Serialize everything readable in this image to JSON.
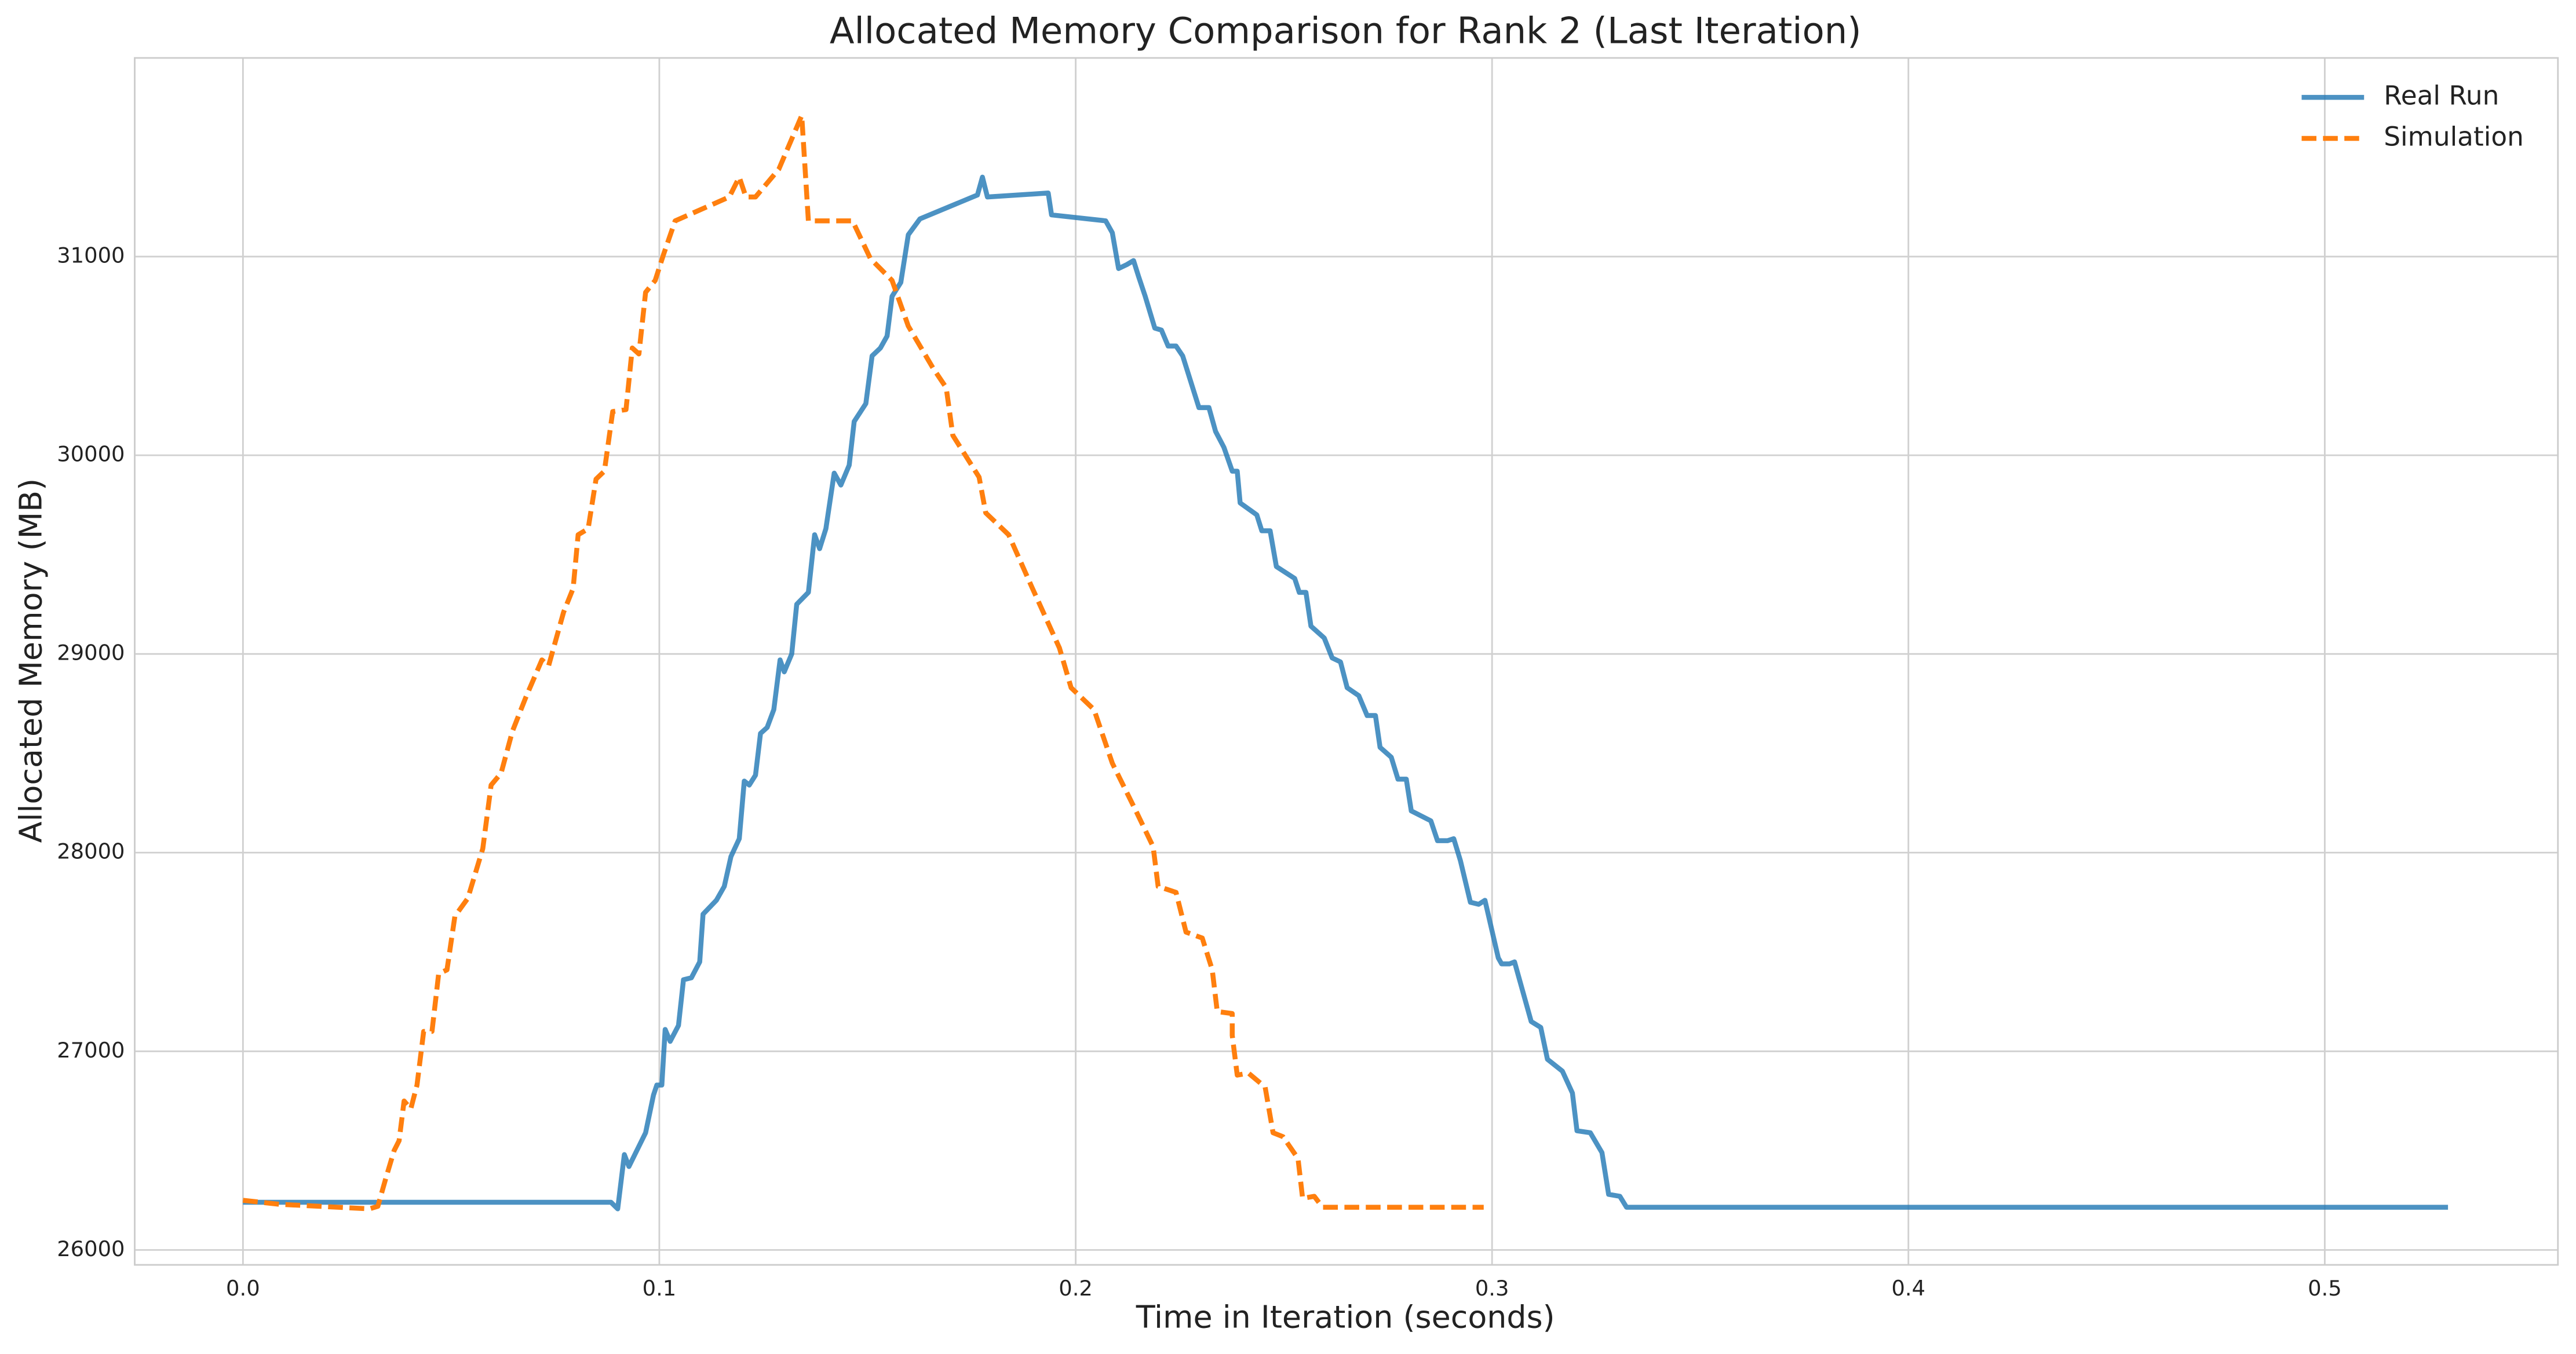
{
  "chart_data": {
    "type": "line",
    "title": "Allocated Memory Comparison for Rank 2 (Last Iteration)",
    "x_label": "Time in Iteration (seconds)",
    "y_label": "Allocated Memory (MB)",
    "xlim": [
      -0.026,
      0.556
    ],
    "ylim": [
      25925,
      32000
    ],
    "xticks": [
      {
        "value": 0,
        "label": "0.0"
      },
      0.1,
      0.2,
      0.3,
      0.4,
      0.5
    ],
    "yticks": [
      26000,
      27000,
      28000,
      29000,
      30000,
      31000
    ],
    "grid": true,
    "legend": "upper right",
    "series": [
      {
        "name": "Real Run",
        "color": "#1f77b4",
        "linestyle": "solid",
        "x": [
          0,
          0.0884,
          0.09,
          0.0916,
          0.0927,
          0.0967,
          0.0986,
          0.0994,
          0.1006,
          0.1014,
          0.1026,
          0.1046,
          0.1058,
          0.1077,
          0.1097,
          0.1105,
          0.1137,
          0.1156,
          0.1172,
          0.1192,
          0.1204,
          0.1216,
          0.1231,
          0.1243,
          0.1259,
          0.1275,
          0.129,
          0.13,
          0.1318,
          0.133,
          0.1358,
          0.1373,
          0.1385,
          0.14,
          0.142,
          0.1436,
          0.1456,
          0.1468,
          0.1496,
          0.1511,
          0.1531,
          0.1547,
          0.1559,
          0.158,
          0.1598,
          0.1626,
          0.1764,
          0.1776,
          0.1788,
          0.1934,
          0.1942,
          0.2072,
          0.2088,
          0.2103,
          0.2123,
          0.2139,
          0.2151,
          0.2167,
          0.219,
          0.2206,
          0.2222,
          0.2241,
          0.2257,
          0.2296,
          0.232,
          0.2336,
          0.2356,
          0.2376,
          0.2388,
          0.2395,
          0.2435,
          0.2447,
          0.2467,
          0.2482,
          0.2526,
          0.2537,
          0.2553,
          0.2565,
          0.2597,
          0.2616,
          0.2636,
          0.2652,
          0.268,
          0.27,
          0.272,
          0.2731,
          0.2758,
          0.2774,
          0.2794,
          0.2806,
          0.2853,
          0.2869,
          0.2893,
          0.2908,
          0.2924,
          0.2948,
          0.2968,
          0.2983,
          0.3015,
          0.3023,
          0.3042,
          0.3054,
          0.3094,
          0.3117,
          0.3133,
          0.3169,
          0.3193,
          0.3204,
          0.3236,
          0.3264,
          0.328,
          0.3307,
          0.3323,
          0.5296
        ],
        "values": [
          26240,
          26240,
          26207,
          26480,
          26420,
          26590,
          26780,
          26830,
          26830,
          27110,
          27050,
          27130,
          27360,
          27370,
          27450,
          27690,
          27760,
          27830,
          27980,
          28070,
          28360,
          28340,
          28390,
          28600,
          28630,
          28720,
          28970,
          28910,
          29000,
          29250,
          29310,
          29600,
          29530,
          29630,
          29910,
          29850,
          29950,
          30170,
          30260,
          30500,
          30540,
          30600,
          30800,
          30870,
          31110,
          31190,
          31310,
          31400,
          31300,
          31320,
          31210,
          31180,
          31120,
          30940,
          30960,
          30980,
          30900,
          30800,
          30640,
          30630,
          30550,
          30550,
          30500,
          30240,
          30240,
          30120,
          30040,
          29920,
          29920,
          29760,
          29700,
          29620,
          29620,
          29440,
          29380,
          29310,
          29310,
          29140,
          29080,
          28980,
          28960,
          28830,
          28790,
          28690,
          28690,
          28530,
          28480,
          28370,
          28370,
          28210,
          28160,
          28060,
          28060,
          28070,
          27960,
          27750,
          27740,
          27760,
          27470,
          27440,
          27440,
          27450,
          27150,
          27120,
          26960,
          26900,
          26790,
          26600,
          26590,
          26490,
          26280,
          26270,
          26215,
          26215
        ]
      },
      {
        "name": "Simulation",
        "color": "#ff7f0e",
        "linestyle": "dashed",
        "x": [
          0,
          0.0087,
          0.0304,
          0.0324,
          0.0343,
          0.0363,
          0.0375,
          0.0387,
          0.0403,
          0.0418,
          0.0434,
          0.0454,
          0.047,
          0.049,
          0.0509,
          0.054,
          0.0576,
          0.0596,
          0.062,
          0.0647,
          0.0679,
          0.0718,
          0.0734,
          0.077,
          0.0793,
          0.0805,
          0.0829,
          0.0848,
          0.0868,
          0.0888,
          0.092,
          0.0935,
          0.0951,
          0.0967,
          0.099,
          0.101,
          0.1038,
          0.1168,
          0.1192,
          0.1208,
          0.1231,
          0.1287,
          0.1342,
          0.1358,
          0.1464,
          0.1507,
          0.1559,
          0.1598,
          0.1657,
          0.1689,
          0.1705,
          0.1768,
          0.1784,
          0.1839,
          0.1894,
          0.1961,
          0.1989,
          0.2044,
          0.2088,
          0.2147,
          0.2186,
          0.2198,
          0.2241,
          0.2265,
          0.2304,
          0.2328,
          0.234,
          0.2376,
          0.2376,
          0.2388,
          0.2415,
          0.2455,
          0.2474,
          0.2498,
          0.2534,
          0.2545,
          0.2573,
          0.2593,
          0.298
        ],
        "values": [
          26250,
          26230,
          26207,
          26220,
          26360,
          26500,
          26550,
          26750,
          26710,
          26830,
          27100,
          27100,
          27390,
          27410,
          27680,
          27770,
          28020,
          28340,
          28400,
          28610,
          28780,
          28970,
          28940,
          29210,
          29330,
          29600,
          29630,
          29880,
          29920,
          30220,
          30230,
          30540,
          30510,
          30820,
          30880,
          31010,
          31180,
          31300,
          31400,
          31300,
          31300,
          31440,
          31710,
          31180,
          31180,
          30990,
          30880,
          30650,
          30440,
          30340,
          30100,
          29890,
          29710,
          29600,
          29340,
          29030,
          28830,
          28720,
          28450,
          28200,
          28030,
          27830,
          27800,
          27600,
          27570,
          27410,
          27200,
          27190,
          27080,
          26880,
          26890,
          26820,
          26590,
          26570,
          26460,
          26260,
          26270,
          26215,
          26215
        ]
      }
    ]
  }
}
